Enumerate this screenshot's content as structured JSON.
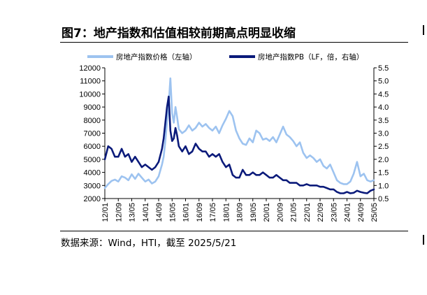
{
  "header": {
    "title": "图7：地产指数和估值相较前期高点明显收缩",
    "source": "数据来源：Wind，HTI，截至 2025/5/21"
  },
  "colors": {
    "price": "#9DC3F0",
    "pb": "#0A1A7A"
  },
  "chart_data": {
    "type": "line",
    "title": "图7：地产指数和估值相较前期高点明显收缩",
    "xlabel": "",
    "ylabel": "",
    "x_ticks": [
      "12/01",
      "12/09",
      "13/05",
      "14/01",
      "14/09",
      "15/05",
      "16/01",
      "16/09",
      "17/05",
      "18/01",
      "18/09",
      "19/05",
      "20/01",
      "20/09",
      "21/05",
      "22/01",
      "22/09",
      "23/05",
      "24/01",
      "24/09",
      "25/05"
    ],
    "x_range": [
      0,
      160
    ],
    "ylim_left": [
      2000,
      12000
    ],
    "ylim_right": [
      0.5,
      5.5
    ],
    "y_ticks_left": [
      "2000",
      "3000",
      "4000",
      "5000",
      "6000",
      "7000",
      "8000",
      "9000",
      "10000",
      "11000",
      "12000"
    ],
    "y_ticks_right": [
      "0.5",
      "1.0",
      "1.5",
      "2.0",
      "2.5",
      "3.0",
      "3.5",
      "4.0",
      "4.5",
      "5.0",
      "5.5"
    ],
    "series": [
      {
        "name": "房地产指数价格（左轴）",
        "axis": "left",
        "x": [
          0,
          2,
          4,
          6,
          8,
          10,
          12,
          14,
          16,
          18,
          20,
          22,
          24,
          26,
          28,
          30,
          32,
          34,
          35,
          36,
          37,
          38,
          39,
          40,
          41,
          42,
          43,
          44,
          46,
          48,
          50,
          52,
          54,
          56,
          58,
          60,
          62,
          64,
          66,
          68,
          70,
          72,
          74,
          76,
          78,
          80,
          82,
          84,
          86,
          88,
          90,
          92,
          94,
          96,
          98,
          100,
          102,
          104,
          106,
          108,
          110,
          112,
          114,
          116,
          118,
          120,
          122,
          124,
          126,
          128,
          130,
          132,
          134,
          136,
          138,
          140,
          142,
          144,
          146,
          148,
          150,
          152,
          154,
          156,
          158,
          160
        ],
        "values": [
          2800,
          3100,
          3350,
          3450,
          3300,
          3700,
          3600,
          3400,
          3850,
          3500,
          3900,
          3600,
          3300,
          3450,
          3150,
          3300,
          3700,
          4600,
          5200,
          6400,
          7900,
          9200,
          11200,
          8500,
          7800,
          9000,
          8200,
          7300,
          7000,
          7200,
          7600,
          7200,
          7400,
          7800,
          7500,
          7700,
          7400,
          7200,
          7500,
          7000,
          7600,
          8100,
          8700,
          8300,
          7200,
          6600,
          6200,
          6100,
          6600,
          6300,
          7200,
          7000,
          6500,
          6600,
          6400,
          6700,
          6300,
          6900,
          7500,
          6900,
          6700,
          6400,
          6000,
          6300,
          5500,
          5100,
          5300,
          5100,
          4800,
          5000,
          4500,
          4300,
          4600,
          4000,
          3400,
          3200,
          3100,
          3100,
          3300,
          3900,
          4800,
          3700,
          3900,
          3400,
          3300,
          3400
        ]
      },
      {
        "name": "房地产指数PB（LF，倍，右轴）",
        "axis": "right",
        "x": [
          0,
          2,
          4,
          6,
          8,
          10,
          12,
          14,
          16,
          18,
          20,
          22,
          24,
          26,
          28,
          30,
          32,
          34,
          35,
          36,
          37,
          38,
          39,
          40,
          41,
          42,
          43,
          44,
          46,
          48,
          50,
          52,
          54,
          56,
          58,
          60,
          62,
          64,
          66,
          68,
          70,
          72,
          74,
          76,
          78,
          80,
          82,
          84,
          86,
          88,
          90,
          92,
          94,
          96,
          98,
          100,
          102,
          104,
          106,
          108,
          110,
          112,
          114,
          116,
          118,
          120,
          122,
          124,
          126,
          128,
          130,
          132,
          134,
          136,
          138,
          140,
          142,
          144,
          146,
          148,
          150,
          152,
          154,
          156,
          158,
          160
        ],
        "values": [
          2.0,
          2.5,
          2.4,
          2.1,
          2.1,
          2.4,
          2.1,
          2.2,
          1.9,
          2.1,
          1.9,
          1.7,
          1.8,
          1.7,
          1.6,
          1.7,
          1.9,
          2.4,
          2.8,
          3.4,
          4.0,
          4.4,
          3.1,
          2.7,
          2.8,
          3.2,
          2.9,
          2.5,
          2.3,
          2.5,
          2.2,
          2.3,
          2.6,
          2.4,
          2.3,
          2.3,
          2.1,
          2.2,
          2.1,
          2.2,
          1.9,
          1.7,
          1.8,
          1.4,
          1.3,
          1.3,
          1.6,
          1.4,
          1.4,
          1.5,
          1.4,
          1.4,
          1.5,
          1.4,
          1.3,
          1.3,
          1.4,
          1.3,
          1.2,
          1.2,
          1.1,
          1.1,
          1.1,
          1.0,
          1.0,
          1.05,
          1.0,
          1.0,
          1.0,
          0.95,
          0.95,
          0.9,
          0.85,
          0.85,
          0.75,
          0.7,
          0.7,
          0.75,
          0.7,
          0.72,
          0.8,
          0.75,
          0.72,
          0.7,
          0.8,
          0.85
        ]
      }
    ],
    "legend": [
      "房地产指数价格（左轴）",
      "房地产指数PB（LF，倍，右轴）"
    ],
    "legend_position": "top"
  }
}
